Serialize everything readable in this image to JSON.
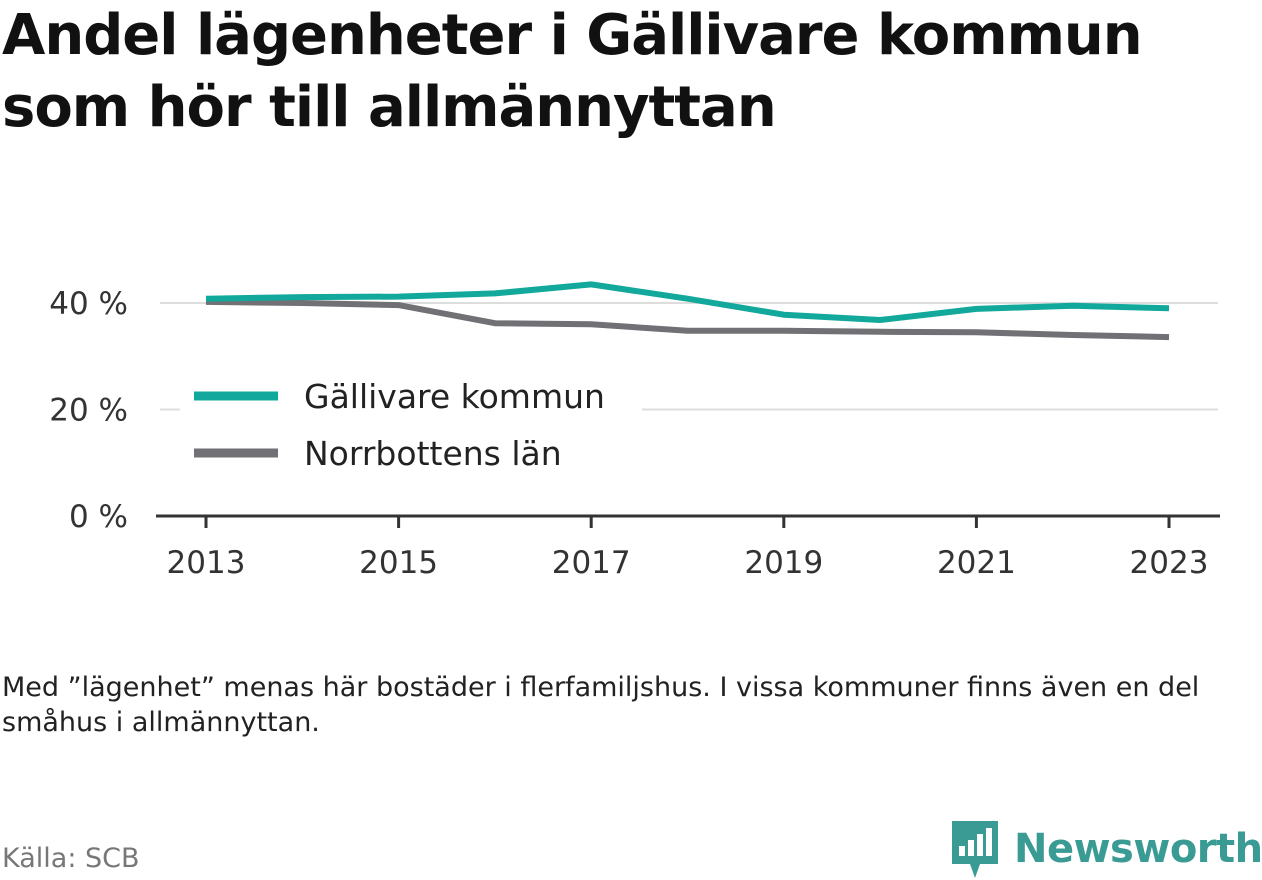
{
  "title": "Andel lägenheter i Gällivare kommun som hör till allmännyttan",
  "note": "Med ”lägenhet” menas här bostäder i flerfamiljshus. I vissa kommuner finns även en del småhus i allmännyttan.",
  "source": "Källa: SCB",
  "brand": {
    "name": "Newsworthy",
    "color": "#3a9a94",
    "icon": "newsworthy-logo-icon"
  },
  "chart_data": {
    "type": "line",
    "x": [
      2013,
      2014,
      2015,
      2016,
      2017,
      2018,
      2019,
      2020,
      2021,
      2022,
      2023
    ],
    "x_ticks": [
      "2013",
      "2015",
      "2017",
      "2019",
      "2021",
      "2023"
    ],
    "y_ticks": [
      "0 %",
      "20 %",
      "40 %"
    ],
    "ylim": [
      0,
      40
    ],
    "grid": true,
    "legend_position": "left-middle",
    "series": [
      {
        "name": "Gällivare kommun",
        "color": "#12a89b",
        "values": [
          40.8,
          41.1,
          41.2,
          41.8,
          43.5,
          40.8,
          37.8,
          36.8,
          38.9,
          39.5,
          39.0
        ]
      },
      {
        "name": "Norrbottens län",
        "color": "#707075",
        "values": [
          40.2,
          40.0,
          39.6,
          36.2,
          36.0,
          34.8,
          34.8,
          34.6,
          34.5,
          34.0,
          33.6
        ]
      }
    ]
  }
}
